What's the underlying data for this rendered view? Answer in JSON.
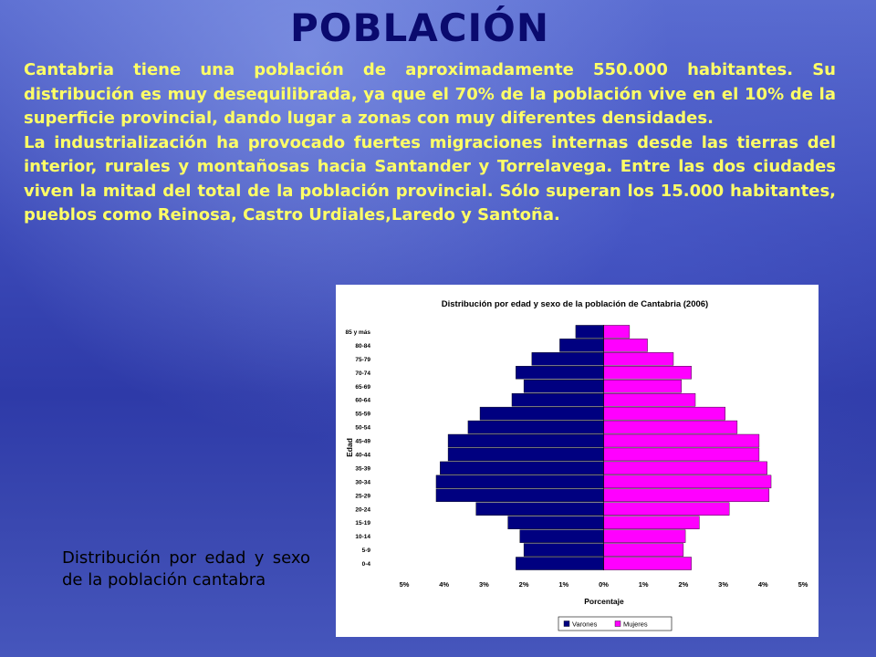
{
  "page": {
    "title": "POBLACIÓN",
    "paragraph1": "Cantabria tiene una población de aproximadamente 550.000 habitantes. Su distribución es muy desequilibrada, ya que el 70% de la población vive en el 10% de la superficie provincial, dando lugar a zonas con muy diferentes densidades.",
    "paragraph2": "La industrialización ha provocado fuertes migraciones internas desde las tierras del interior, rurales y montañosas hacia Santander  y Torrelavega. Entre las dos ciudades viven la mitad del total de la población provincial. Sólo superan los 15.000 habitantes, pueblos como Reinosa, Castro Urdiales,Laredo y Santoña.",
    "caption": "Distribución por edad y sexo de la población cantabra"
  },
  "colors": {
    "title": "#0a0a6e",
    "text": "#ffff66",
    "varones": "#000080",
    "mujeres": "#ff00ff"
  },
  "chart_data": {
    "type": "bar",
    "subtype": "population-pyramid",
    "title": "Distribución por edad y sexo de la población de Cantabria (2006)",
    "xlabel": "Porcentaje",
    "ylabel": "Edad",
    "xlim": [
      -5,
      5
    ],
    "x_ticks": [
      "5%",
      "4%",
      "3%",
      "2%",
      "1%",
      "0%",
      "1%",
      "2%",
      "3%",
      "4%",
      "5%"
    ],
    "legend_position": "bottom-right",
    "categories": [
      "85 y más",
      "80-84",
      "75-79",
      "70-74",
      "65-69",
      "60-64",
      "55-59",
      "50-54",
      "45-49",
      "40-44",
      "35-39",
      "30-34",
      "25-29",
      "20-24",
      "15-19",
      "10-14",
      "5-9",
      "0-4"
    ],
    "series": [
      {
        "name": "Varones",
        "values": [
          0.7,
          1.1,
          1.8,
          2.2,
          2.0,
          2.3,
          3.1,
          3.4,
          3.9,
          3.9,
          4.1,
          4.2,
          4.2,
          3.2,
          2.4,
          2.1,
          2.0,
          2.2
        ]
      },
      {
        "name": "Mujeres",
        "values": [
          0.65,
          1.1,
          1.75,
          2.2,
          1.95,
          2.3,
          3.05,
          3.35,
          3.9,
          3.9,
          4.1,
          4.2,
          4.15,
          3.15,
          2.4,
          2.05,
          2.0,
          2.2
        ]
      }
    ]
  }
}
